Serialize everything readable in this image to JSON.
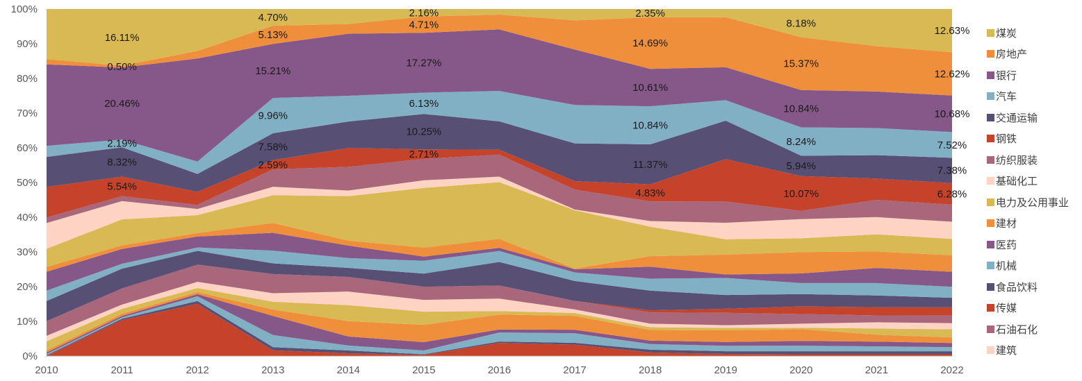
{
  "chart_data": {
    "type": "area",
    "stacked": "percent",
    "title": "",
    "xlabel": "",
    "ylabel": "",
    "ylim": [
      0,
      100
    ],
    "y_ticks": [
      "0%",
      "10%",
      "20%",
      "30%",
      "40%",
      "50%",
      "60%",
      "70%",
      "80%",
      "90%",
      "100%"
    ],
    "x": [
      "2010",
      "2011",
      "2012",
      "2013",
      "2014",
      "2015",
      "2016",
      "2017",
      "2018",
      "2019",
      "2020",
      "2021",
      "2022"
    ],
    "grid": false,
    "legend_position": "right",
    "series_bottom_to_top": [
      {
        "name": "(unlabeled-1)",
        "legend": false,
        "color": "#C5432A",
        "values": [
          0.0,
          10.2,
          15.2,
          1.6,
          0.8,
          0.3,
          3.8,
          3.2,
          1.0,
          0.6,
          0.5,
          0.5,
          0.5
        ]
      },
      {
        "name": "(unlabeled-2)",
        "legend": false,
        "color": "#575074",
        "values": [
          0.2,
          0.4,
          0.8,
          0.9,
          0.8,
          0.2,
          0.4,
          0.5,
          0.8,
          0.8,
          0.9,
          0.9,
          0.9
        ]
      },
      {
        "name": "(unlabeled-3)",
        "legend": false,
        "color": "#81AFC3",
        "values": [
          0.4,
          0.4,
          1.4,
          3.4,
          1.4,
          1.1,
          2.6,
          2.7,
          1.6,
          1.6,
          1.6,
          1.4,
          1.2
        ]
      },
      {
        "name": "(unlabeled-4)",
        "legend": false,
        "color": "#865789",
        "values": [
          0.4,
          0.4,
          0.6,
          5.4,
          2.6,
          2.4,
          0.9,
          1.0,
          1.0,
          1.1,
          1.4,
          1.4,
          1.2
        ]
      },
      {
        "name": "(unlabeled-5)",
        "legend": false,
        "color": "#F08F3B",
        "values": [
          0.6,
          0.6,
          0.6,
          1.8,
          4.4,
          5.0,
          4.3,
          3.9,
          3.0,
          3.4,
          3.4,
          2.0,
          1.6
        ]
      },
      {
        "name": "(unlabeled-6)",
        "legend": false,
        "color": "#D8B953",
        "values": [
          2.6,
          1.4,
          1.2,
          2.2,
          4.6,
          3.8,
          1.0,
          0.8,
          0.8,
          0.7,
          0.4,
          1.8,
          2.4
        ]
      },
      {
        "name": "建筑",
        "legend": true,
        "color": "#FDD3C4",
        "values": [
          1.6,
          1.2,
          1.8,
          2.4,
          3.9,
          3.4,
          3.6,
          1.0,
          1.0,
          0.8,
          1.2,
          1.8,
          1.8
        ]
      },
      {
        "name": "石油石化",
        "legend": true,
        "color": "#A8677A",
        "values": [
          4.2,
          4.6,
          5.0,
          5.4,
          4.2,
          3.8,
          3.8,
          2.4,
          3.2,
          3.6,
          2.8,
          2.0,
          2.2
        ]
      },
      {
        "name": "传媒",
        "legend": true,
        "color": "#C5432A",
        "values": [
          0,
          0,
          0,
          0,
          0,
          0,
          0,
          0,
          0.6,
          1.2,
          2.2,
          2.4,
          2.4
        ]
      },
      {
        "name": "食品饮料",
        "legend": true,
        "color": "#575074",
        "values": [
          5.8,
          5.6,
          4.0,
          3.0,
          2.6,
          3.8,
          6.8,
          5.6,
          5.6,
          4.0,
          3.6,
          3.4,
          2.8
        ]
      },
      {
        "name": "机械",
        "legend": true,
        "color": "#81AFC3",
        "values": [
          3.0,
          1.4,
          1.0,
          3.6,
          2.8,
          3.7,
          3.2,
          2.4,
          3.4,
          5.0,
          3.2,
          3.6,
          3.2
        ]
      },
      {
        "name": "医药",
        "legend": true,
        "color": "#865789",
        "values": [
          5.4,
          4.2,
          3.2,
          5.0,
          3.6,
          1.2,
          0.9,
          0.9,
          3.4,
          1.0,
          2.8,
          4.4,
          4.4
        ]
      },
      {
        "name": "建材",
        "legend": true,
        "color": "#F08F3B",
        "values": [
          1.4,
          1.0,
          1.0,
          2.8,
          1.4,
          2.6,
          2.6,
          0.2,
          3.0,
          5.8,
          6.2,
          4.8,
          4.8
        ]
      },
      {
        "name": "电力及公用事业",
        "legend": true,
        "color": "#D8B953",
        "values": [
          5.2,
          7.4,
          5.2,
          7.8,
          12.8,
          17.2,
          16.4,
          16.4,
          8.4,
          4.5,
          4.0,
          5.0,
          4.8
        ]
      },
      {
        "name": "基础化工",
        "legend": true,
        "color": "#FDD3C4",
        "values": [
          7.4,
          5.2,
          1.8,
          2.4,
          1.6,
          2.2,
          1.6,
          0.2,
          1.6,
          4.8,
          5.6,
          5.0,
          5.0
        ]
      },
      {
        "name": "纺织服装",
        "legend": true,
        "color": "#A8677A",
        "values": [
          1.6,
          1.4,
          1.2,
          4.9,
          6.8,
          6.2,
          6.4,
          5.6,
          5.6,
          6.2,
          2.4,
          5.0,
          5.0
        ]
      },
      {
        "name": "钢铁",
        "legend": true,
        "color": "#C5432A",
        "values": [
          8.8,
          5.54,
          3.8,
          2.59,
          5.4,
          2.71,
          1.4,
          2.4,
          4.83,
          12.4,
          10.07,
          6.2,
          6.28
        ]
      },
      {
        "name": "交通运输",
        "legend": true,
        "color": "#575074",
        "values": [
          8.6,
          8.32,
          5.2,
          7.58,
          7.6,
          10.25,
          8.2,
          10.6,
          11.37,
          11.2,
          5.94,
          6.8,
          7.38
        ]
      },
      {
        "name": "汽车",
        "legend": true,
        "color": "#81AFC3",
        "values": [
          3.2,
          2.19,
          3.6,
          9.96,
          7.4,
          6.13,
          8.8,
          10.8,
          10.84,
          6.0,
          8.24,
          7.9,
          7.52
        ]
      },
      {
        "name": "银行",
        "legend": true,
        "color": "#865789",
        "values": [
          23.4,
          20.46,
          30.0,
          15.21,
          17.8,
          17.27,
          17.8,
          15.6,
          10.61,
          9.6,
          10.84,
          10.6,
          10.68
        ]
      },
      {
        "name": "房地产",
        "legend": true,
        "color": "#F08F3B",
        "values": [
          1.5,
          0.5,
          2.2,
          5.13,
          2.8,
          4.71,
          4.3,
          8.2,
          14.69,
          14.6,
          15.37,
          13.2,
          12.62
        ]
      },
      {
        "name": "煤炭",
        "legend": true,
        "color": "#D8B953",
        "values": [
          14.4,
          16.11,
          12.2,
          4.7,
          4.3,
          2.16,
          1.6,
          3.2,
          2.35,
          2.4,
          8.18,
          10.8,
          12.63
        ]
      }
    ],
    "data_labels": [
      {
        "x": "2011",
        "series": "煤炭",
        "text": "16.11%"
      },
      {
        "x": "2011",
        "series": "房地产",
        "text": "0.50%"
      },
      {
        "x": "2011",
        "series": "银行",
        "text": "20.46%"
      },
      {
        "x": "2011",
        "series": "汽车",
        "text": "2.19%"
      },
      {
        "x": "2011",
        "series": "交通运输",
        "text": "8.32%"
      },
      {
        "x": "2011",
        "series": "钢铁",
        "text": "5.54%"
      },
      {
        "x": "2013",
        "series": "煤炭",
        "text": "4.70%"
      },
      {
        "x": "2013",
        "series": "房地产",
        "text": "5.13%"
      },
      {
        "x": "2013",
        "series": "银行",
        "text": "15.21%"
      },
      {
        "x": "2013",
        "series": "汽车",
        "text": "9.96%"
      },
      {
        "x": "2013",
        "series": "交通运输",
        "text": "7.58%"
      },
      {
        "x": "2013",
        "series": "钢铁",
        "text": "2.59%"
      },
      {
        "x": "2015",
        "series": "煤炭",
        "text": "2.16%"
      },
      {
        "x": "2015",
        "series": "房地产",
        "text": "4.71%"
      },
      {
        "x": "2015",
        "series": "银行",
        "text": "17.27%"
      },
      {
        "x": "2015",
        "series": "汽车",
        "text": "6.13%"
      },
      {
        "x": "2015",
        "series": "交通运输",
        "text": "10.25%"
      },
      {
        "x": "2015",
        "series": "钢铁",
        "text": "2.71%"
      },
      {
        "x": "2018",
        "series": "煤炭",
        "text": "2.35%"
      },
      {
        "x": "2018",
        "series": "房地产",
        "text": "14.69%"
      },
      {
        "x": "2018",
        "series": "银行",
        "text": "10.61%"
      },
      {
        "x": "2018",
        "series": "汽车",
        "text": "10.84%"
      },
      {
        "x": "2018",
        "series": "交通运输",
        "text": "11.37%"
      },
      {
        "x": "2018",
        "series": "钢铁",
        "text": "4.83%"
      },
      {
        "x": "2020",
        "series": "煤炭",
        "text": "8.18%"
      },
      {
        "x": "2020",
        "series": "房地产",
        "text": "15.37%"
      },
      {
        "x": "2020",
        "series": "银行",
        "text": "10.84%"
      },
      {
        "x": "2020",
        "series": "汽车",
        "text": "8.24%"
      },
      {
        "x": "2020",
        "series": "交通运输",
        "text": "5.94%"
      },
      {
        "x": "2020",
        "series": "钢铁",
        "text": "10.07%"
      },
      {
        "x": "2022",
        "series": "煤炭",
        "text": "12.63%"
      },
      {
        "x": "2022",
        "series": "房地产",
        "text": "12.62%"
      },
      {
        "x": "2022",
        "series": "银行",
        "text": "10.68%"
      },
      {
        "x": "2022",
        "series": "汽车",
        "text": "7.52%"
      },
      {
        "x": "2022",
        "series": "交通运输",
        "text": "7.38%"
      },
      {
        "x": "2022",
        "series": "钢铁",
        "text": "6.28%"
      }
    ]
  },
  "legend": {
    "items": [
      {
        "label": "煤炭",
        "color": "#D8B953"
      },
      {
        "label": "房地产",
        "color": "#F08F3B"
      },
      {
        "label": "银行",
        "color": "#865789"
      },
      {
        "label": "汽车",
        "color": "#81AFC3"
      },
      {
        "label": "交通运输",
        "color": "#575074"
      },
      {
        "label": "钢铁",
        "color": "#C5432A"
      },
      {
        "label": "纺织服装",
        "color": "#A8677A"
      },
      {
        "label": "基础化工",
        "color": "#FDD3C4"
      },
      {
        "label": "电力及公用事业",
        "color": "#D8B953"
      },
      {
        "label": "建材",
        "color": "#F08F3B"
      },
      {
        "label": "医药",
        "color": "#865789"
      },
      {
        "label": "机械",
        "color": "#81AFC3"
      },
      {
        "label": "食品饮料",
        "color": "#575074"
      },
      {
        "label": "传媒",
        "color": "#C5432A"
      },
      {
        "label": "石油石化",
        "color": "#A8677A"
      },
      {
        "label": "建筑",
        "color": "#FDD3C4"
      }
    ]
  }
}
